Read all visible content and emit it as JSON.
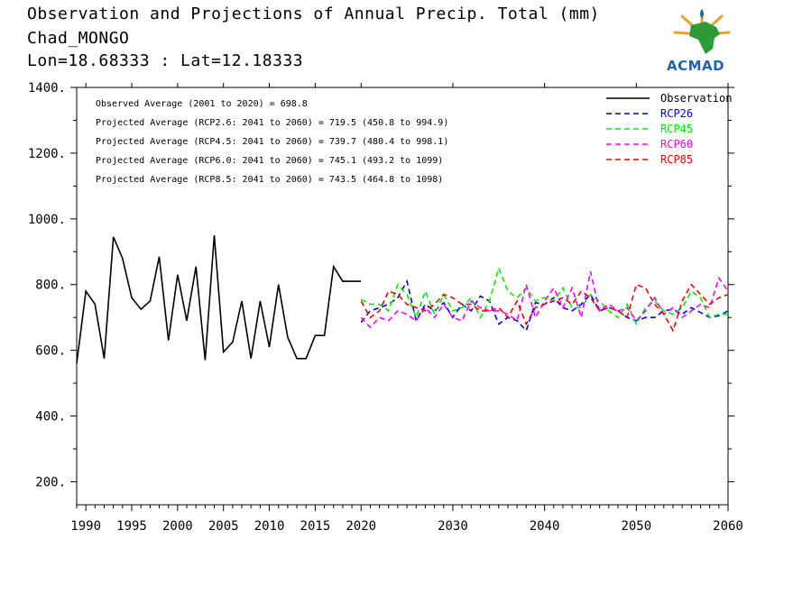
{
  "header": {
    "title": "Observation and Projections of Annual Precip. Total (mm)",
    "station": "Chad_MONGO",
    "coords": "Lon=18.68333 : Lat=12.18333"
  },
  "logo": {
    "text": "ACMAD"
  },
  "colors": {
    "observation": "#000000",
    "RCP26": "#0000ff",
    "RCP45": "#00ee00",
    "RCP60": "#ff00ff",
    "RCP85": "#ff0000"
  },
  "chart_data": {
    "type": "line",
    "title": "Observation and Projections of Annual Precip. Total (mm)",
    "xlim": [
      1989,
      2060
    ],
    "ylim": [
      130,
      1400
    ],
    "x_ticks": [
      1990,
      1995,
      2000,
      2005,
      2010,
      2015,
      2020,
      2030,
      2040,
      2050,
      2060
    ],
    "y_ticks": [
      200,
      400,
      600,
      800,
      1000,
      1200,
      1400
    ],
    "y_tick_labels": [
      "200.",
      "400.",
      "600.",
      "800.",
      "1000.",
      "1200.",
      "1400."
    ],
    "legend_position": "top-right",
    "legend": [
      "Observation",
      "RCP26",
      "RCP45",
      "RCP60",
      "RCP85"
    ],
    "annotations": [
      "Observed Average (2001 to 2020) = 698.8",
      "Projected Average (RCP2.6: 2041 to 2060) = 719.5 (450.8 to 994.9)",
      "Projected Average (RCP4.5: 2041 to 2060) = 739.7 (480.4 to 998.1)",
      "Projected Average (RCP6.0: 2041 to 2060) = 745.1 (493.2 to 1099)",
      "Projected Average (RCP8.5: 2041 to 2060) = 743.5 (464.8 to 1098)"
    ],
    "observation": {
      "name": "Observation",
      "x": [
        1989,
        1990,
        1991,
        1992,
        1993,
        1994,
        1995,
        1996,
        1997,
        1998,
        1999,
        2000,
        2001,
        2002,
        2003,
        2004,
        2005,
        2006,
        2007,
        2008,
        2009,
        2010,
        2011,
        2012,
        2013,
        2014,
        2015,
        2016,
        2017,
        2018,
        2019,
        2020
      ],
      "values": [
        560,
        780,
        740,
        575,
        945,
        880,
        760,
        725,
        750,
        885,
        630,
        830,
        690,
        855,
        570,
        950,
        595,
        625,
        750,
        575,
        750,
        610,
        800,
        640,
        575,
        575,
        645,
        645,
        855,
        810,
        810,
        810
      ]
    },
    "projection_x": [
      2020,
      2021,
      2022,
      2023,
      2024,
      2025,
      2026,
      2027,
      2028,
      2029,
      2030,
      2031,
      2032,
      2033,
      2034,
      2035,
      2036,
      2037,
      2038,
      2039,
      2040,
      2041,
      2042,
      2043,
      2044,
      2045,
      2046,
      2047,
      2048,
      2049,
      2050,
      2051,
      2052,
      2053,
      2054,
      2055,
      2056,
      2057,
      2058,
      2059,
      2060
    ],
    "series": [
      {
        "name": "RCP26",
        "values": [
          685,
          720,
          730,
          740,
          760,
          810,
          690,
          740,
          720,
          745,
          700,
          740,
          720,
          765,
          750,
          680,
          700,
          690,
          660,
          745,
          740,
          760,
          730,
          720,
          740,
          770,
          720,
          730,
          720,
          700,
          690,
          700,
          700,
          720,
          725,
          710,
          730,
          715,
          700,
          705,
          720
        ]
      },
      {
        "name": "RCP45",
        "values": [
          755,
          740,
          740,
          720,
          800,
          770,
          700,
          780,
          710,
          770,
          720,
          730,
          760,
          700,
          750,
          850,
          780,
          760,
          790,
          750,
          760,
          750,
          790,
          730,
          730,
          770,
          750,
          720,
          700,
          740,
          680,
          730,
          750,
          720,
          710,
          730,
          780,
          760,
          700,
          710,
          710
        ]
      },
      {
        "name": "RCP60",
        "values": [
          700,
          670,
          700,
          690,
          720,
          710,
          690,
          730,
          700,
          740,
          700,
          690,
          750,
          730,
          720,
          720,
          710,
          690,
          800,
          700,
          750,
          790,
          730,
          790,
          700,
          840,
          720,
          740,
          720,
          730,
          690,
          720,
          760,
          710,
          730,
          700,
          720,
          740,
          730,
          820,
          780
        ]
      },
      {
        "name": "RCP85",
        "values": [
          750,
          700,
          720,
          780,
          770,
          740,
          730,
          720,
          740,
          770,
          760,
          740,
          740,
          720,
          720,
          730,
          700,
          750,
          680,
          730,
          740,
          750,
          760,
          740,
          780,
          760,
          720,
          730,
          720,
          700,
          800,
          790,
          740,
          710,
          660,
          750,
          800,
          770,
          740,
          760,
          770
        ]
      }
    ]
  }
}
